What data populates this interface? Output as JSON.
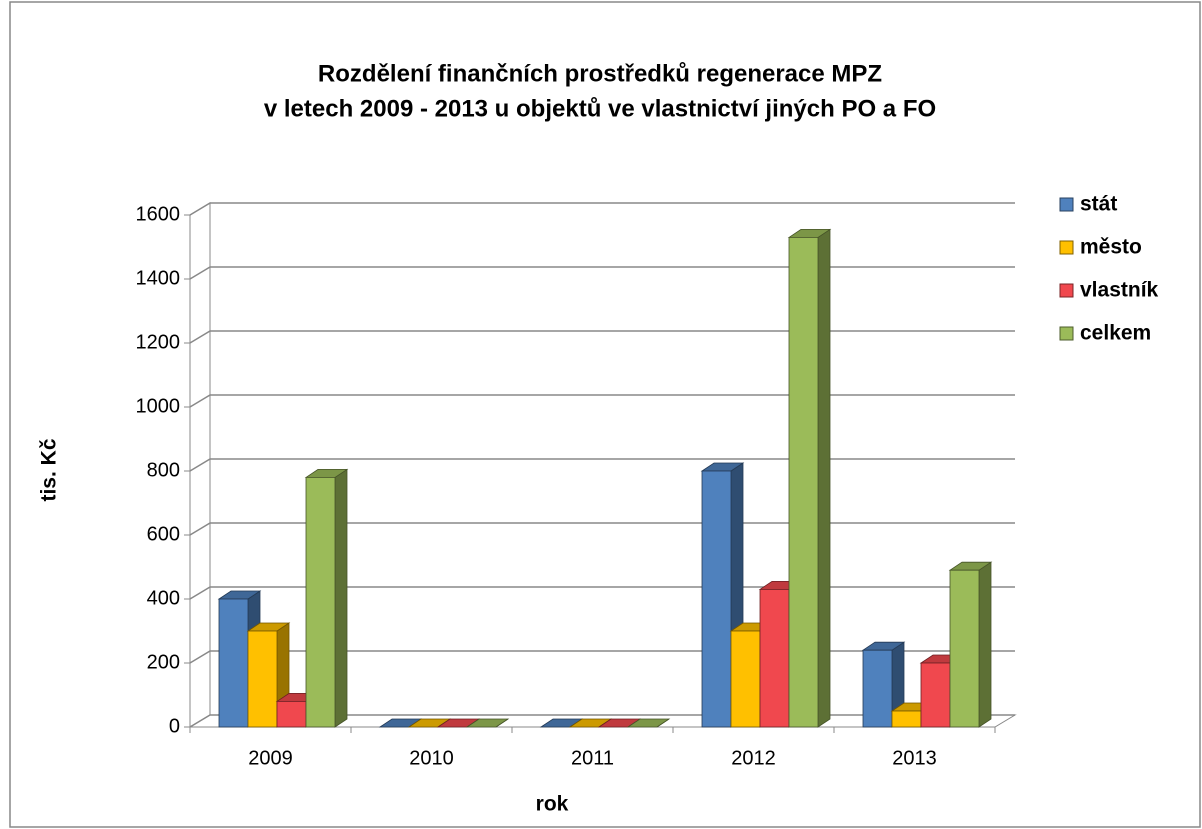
{
  "chart_data": {
    "type": "bar3d",
    "title": "Rozdělení finančních prostředků regenerace MPZ",
    "subtitle": "v letech 2009 - 2013 u objektů ve vlastnictví jiných PO a FO",
    "y_label": "tis. Kč",
    "x_label": "rok",
    "categories": [
      "2009",
      "2010",
      "2011",
      "2012",
      "2013"
    ],
    "series": [
      {
        "name": "stát",
        "color": "#4f81bd",
        "values": [
          400,
          0,
          0,
          800,
          240
        ]
      },
      {
        "name": "město",
        "color": "#ffc000",
        "values": [
          300,
          0,
          0,
          300,
          50
        ]
      },
      {
        "name": "vlastník",
        "color": "#f0484e",
        "values": [
          80,
          0,
          0,
          430,
          200
        ]
      },
      {
        "name": "celkem",
        "color": "#9bbb59",
        "values": [
          780,
          0,
          0,
          1530,
          490
        ]
      }
    ],
    "ylim": [
      0,
      1600
    ],
    "yticks": [
      0,
      200,
      400,
      600,
      800,
      1000,
      1200,
      1400,
      1600
    ],
    "grid": true,
    "legend": "right"
  }
}
